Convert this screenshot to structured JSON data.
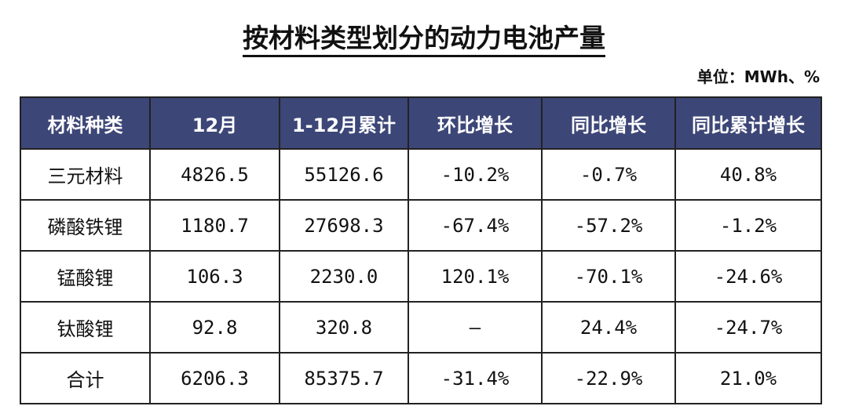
{
  "title": "按材料类型划分的动力电池产量",
  "unit": "单位：MWh、%",
  "chart_data": {
    "type": "table",
    "title": "按材料类型划分的动力电池产量",
    "columns": [
      "材料种类",
      "12月",
      "1-12月累计",
      "环比增长",
      "同比增长",
      "同比累计增长"
    ],
    "rows": [
      [
        "三元材料",
        "4826.5",
        "55126.6",
        "-10.2%",
        "-0.7%",
        "40.8%"
      ],
      [
        "磷酸铁锂",
        "1180.7",
        "27698.3",
        "-67.4%",
        "-57.2%",
        "-1.2%"
      ],
      [
        "锰酸锂",
        "106.3",
        "2230.0",
        "120.1%",
        "-70.1%",
        "-24.6%"
      ],
      [
        "钛酸锂",
        "92.8",
        "320.8",
        "—",
        "24.4%",
        "-24.7%"
      ],
      [
        "合计",
        "6206.3",
        "85375.7",
        "-31.4%",
        "-22.9%",
        "21.0%"
      ]
    ],
    "header_color": "#3c4677"
  }
}
